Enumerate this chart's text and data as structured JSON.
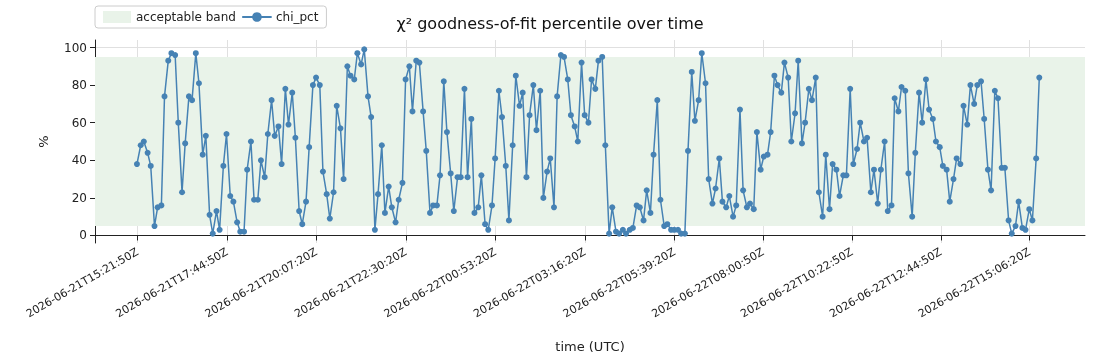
{
  "chart_data": {
    "type": "line",
    "title": "χ² goodness-of-fit percentile over time",
    "xlabel": "time (UTC)",
    "ylabel": "%",
    "x": [
      "2026-06-21T15:21",
      "2026-06-21T15:27",
      "2026-06-21T15:32",
      "2026-06-21T15:38",
      "2026-06-21T15:43",
      "2026-06-21T15:49",
      "2026-06-21T15:54",
      "2026-06-21T16:00",
      "2026-06-21T16:05",
      "2026-06-21T16:11",
      "2026-06-21T16:16",
      "2026-06-21T16:22",
      "2026-06-21T16:27",
      "2026-06-21T16:33",
      "2026-06-21T16:38",
      "2026-06-21T16:44",
      "2026-06-21T16:49",
      "2026-06-21T16:55",
      "2026-06-21T17:00",
      "2026-06-21T17:06",
      "2026-06-21T17:11",
      "2026-06-21T17:17",
      "2026-06-21T17:22",
      "2026-06-21T17:28",
      "2026-06-21T17:33",
      "2026-06-21T17:39",
      "2026-06-21T17:44",
      "2026-06-21T17:50",
      "2026-06-21T17:55",
      "2026-06-21T18:01",
      "2026-06-21T18:06",
      "2026-06-21T18:12",
      "2026-06-21T18:17",
      "2026-06-21T18:23",
      "2026-06-21T18:28",
      "2026-06-21T18:34",
      "2026-06-21T18:39",
      "2026-06-21T18:45",
      "2026-06-21T18:50",
      "2026-06-21T18:56",
      "2026-06-21T19:01",
      "2026-06-21T19:07",
      "2026-06-21T19:12",
      "2026-06-21T19:18",
      "2026-06-21T19:23",
      "2026-06-21T19:29",
      "2026-06-21T19:34",
      "2026-06-21T19:40",
      "2026-06-21T19:45",
      "2026-06-21T19:51",
      "2026-06-21T19:56",
      "2026-06-21T20:02",
      "2026-06-21T20:07",
      "2026-06-21T20:13",
      "2026-06-21T20:18",
      "2026-06-21T20:24",
      "2026-06-21T20:29",
      "2026-06-21T20:35",
      "2026-06-21T20:40",
      "2026-06-21T20:46",
      "2026-06-21T20:51",
      "2026-06-21T20:57",
      "2026-06-21T21:02",
      "2026-06-21T21:08",
      "2026-06-21T21:13",
      "2026-06-21T21:19",
      "2026-06-21T21:24",
      "2026-06-21T21:30",
      "2026-06-21T21:35",
      "2026-06-21T21:41",
      "2026-06-21T21:46",
      "2026-06-21T21:52",
      "2026-06-21T21:57",
      "2026-06-21T22:03",
      "2026-06-21T22:08",
      "2026-06-21T22:14",
      "2026-06-21T22:19",
      "2026-06-21T22:25",
      "2026-06-21T22:30",
      "2026-06-21T22:36",
      "2026-06-21T22:41",
      "2026-06-21T22:47",
      "2026-06-21T22:52",
      "2026-06-21T22:58",
      "2026-06-21T23:03",
      "2026-06-21T23:09",
      "2026-06-21T23:14",
      "2026-06-21T23:20",
      "2026-06-21T23:25",
      "2026-06-21T23:31",
      "2026-06-21T23:36",
      "2026-06-21T23:42",
      "2026-06-21T23:47",
      "2026-06-21T23:53",
      "2026-06-21T23:58",
      "2026-06-22T00:04",
      "2026-06-22T00:09",
      "2026-06-22T00:15",
      "2026-06-22T00:20",
      "2026-06-22T00:26",
      "2026-06-22T00:31",
      "2026-06-22T00:37",
      "2026-06-22T00:42",
      "2026-06-22T00:48",
      "2026-06-22T00:53",
      "2026-06-22T00:59",
      "2026-06-22T01:04",
      "2026-06-22T01:10",
      "2026-06-22T01:15",
      "2026-06-22T01:21",
      "2026-06-22T01:26",
      "2026-06-22T01:32",
      "2026-06-22T01:37",
      "2026-06-22T01:43",
      "2026-06-22T01:48",
      "2026-06-22T01:54",
      "2026-06-22T01:59",
      "2026-06-22T02:05",
      "2026-06-22T02:10",
      "2026-06-22T02:16",
      "2026-06-22T02:21",
      "2026-06-22T02:27",
      "2026-06-22T02:32",
      "2026-06-22T02:38",
      "2026-06-22T02:43",
      "2026-06-22T02:49",
      "2026-06-22T02:54",
      "2026-06-22T03:00",
      "2026-06-22T03:05",
      "2026-06-22T03:11",
      "2026-06-22T03:16",
      "2026-06-22T03:22",
      "2026-06-22T03:27",
      "2026-06-22T03:33",
      "2026-06-22T03:38",
      "2026-06-22T03:44",
      "2026-06-22T03:49",
      "2026-06-22T03:55",
      "2026-06-22T04:00",
      "2026-06-22T04:06",
      "2026-06-22T04:11",
      "2026-06-22T04:17",
      "2026-06-22T04:22",
      "2026-06-22T04:28",
      "2026-06-22T04:33",
      "2026-06-22T04:39",
      "2026-06-22T04:44",
      "2026-06-22T04:50",
      "2026-06-22T04:55",
      "2026-06-22T05:01",
      "2026-06-22T05:06",
      "2026-06-22T05:12",
      "2026-06-22T05:17",
      "2026-06-22T05:23",
      "2026-06-22T05:28",
      "2026-06-22T05:34",
      "2026-06-22T05:39",
      "2026-06-22T05:45",
      "2026-06-22T05:50",
      "2026-06-22T05:56",
      "2026-06-22T06:01",
      "2026-06-22T06:07",
      "2026-06-22T06:12",
      "2026-06-22T06:18",
      "2026-06-22T06:23",
      "2026-06-22T06:29",
      "2026-06-22T06:34",
      "2026-06-22T06:40",
      "2026-06-22T06:45",
      "2026-06-22T06:51",
      "2026-06-22T06:56",
      "2026-06-22T07:02",
      "2026-06-22T07:07",
      "2026-06-22T07:13",
      "2026-06-22T07:18",
      "2026-06-22T07:24",
      "2026-06-22T07:29",
      "2026-06-22T07:35",
      "2026-06-22T07:40",
      "2026-06-22T07:46",
      "2026-06-22T07:51",
      "2026-06-22T07:57",
      "2026-06-22T08:02",
      "2026-06-22T08:08",
      "2026-06-22T08:13",
      "2026-06-22T08:19",
      "2026-06-22T08:24",
      "2026-06-22T08:30",
      "2026-06-22T08:35",
      "2026-06-22T08:41",
      "2026-06-22T08:46",
      "2026-06-22T08:52",
      "2026-06-22T08:57",
      "2026-06-22T09:03",
      "2026-06-22T09:08",
      "2026-06-22T09:14",
      "2026-06-22T09:19",
      "2026-06-22T09:25",
      "2026-06-22T09:30",
      "2026-06-22T09:36",
      "2026-06-22T09:41",
      "2026-06-22T09:47",
      "2026-06-22T09:52",
      "2026-06-22T09:58",
      "2026-06-22T10:03",
      "2026-06-22T10:09",
      "2026-06-22T10:14",
      "2026-06-22T10:20",
      "2026-06-22T10:25",
      "2026-06-22T10:31",
      "2026-06-22T10:36",
      "2026-06-22T10:42",
      "2026-06-22T10:47",
      "2026-06-22T10:53",
      "2026-06-22T10:58",
      "2026-06-22T11:04",
      "2026-06-22T11:09",
      "2026-06-22T11:15",
      "2026-06-22T11:20",
      "2026-06-22T11:26",
      "2026-06-22T11:31",
      "2026-06-22T11:37",
      "2026-06-22T11:42",
      "2026-06-22T11:48",
      "2026-06-22T11:53",
      "2026-06-22T11:59",
      "2026-06-22T12:04",
      "2026-06-22T12:10",
      "2026-06-22T12:15",
      "2026-06-22T12:21",
      "2026-06-22T12:26",
      "2026-06-22T12:32",
      "2026-06-22T12:37",
      "2026-06-22T12:43",
      "2026-06-22T12:48",
      "2026-06-22T12:54",
      "2026-06-22T12:59",
      "2026-06-22T13:05",
      "2026-06-22T13:10",
      "2026-06-22T13:16",
      "2026-06-22T13:21",
      "2026-06-22T13:27",
      "2026-06-22T13:32",
      "2026-06-22T13:38",
      "2026-06-22T13:43",
      "2026-06-22T13:49",
      "2026-06-22T13:54",
      "2026-06-22T14:00",
      "2026-06-22T14:05",
      "2026-06-22T14:11",
      "2026-06-22T14:16",
      "2026-06-22T14:22",
      "2026-06-22T14:27",
      "2026-06-22T14:33",
      "2026-06-22T14:38",
      "2026-06-22T14:44",
      "2026-06-22T14:49",
      "2026-06-22T14:55",
      "2026-06-22T15:00",
      "2026-06-22T15:06",
      "2026-06-22T15:11",
      "2026-06-22T15:17",
      "2026-06-22T15:22"
    ],
    "series": [
      {
        "name": "chi_pct",
        "color": "#4682b4",
        "values": [
          38,
          48,
          50,
          44,
          37,
          5,
          15,
          16,
          74,
          93,
          97,
          96,
          60,
          23,
          49,
          74,
          72,
          97,
          81,
          43,
          53,
          11,
          1,
          13,
          3,
          37,
          54,
          21,
          18,
          7,
          2,
          2,
          35,
          50,
          19,
          19,
          40,
          31,
          54,
          72,
          53,
          58,
          38,
          78,
          59,
          76,
          52,
          13,
          6,
          18,
          47,
          80,
          84,
          80,
          34,
          22,
          9,
          23,
          69,
          57,
          30,
          90,
          85,
          83,
          97,
          91,
          99,
          74,
          63,
          3,
          22,
          48,
          12,
          26,
          15,
          7,
          19,
          28,
          83,
          90,
          66,
          93,
          92,
          66,
          45,
          12,
          16,
          16,
          32,
          82,
          55,
          33,
          13,
          31,
          31,
          78,
          31,
          62,
          12,
          15,
          32,
          6,
          3,
          16,
          41,
          77,
          63,
          37,
          8,
          48,
          85,
          69,
          76,
          31,
          64,
          80,
          56,
          77,
          20,
          34,
          41,
          15,
          74,
          96,
          95,
          83,
          64,
          58,
          50,
          92,
          64,
          60,
          83,
          78,
          93,
          95,
          48,
          1,
          15,
          2,
          1,
          3,
          1,
          3,
          4,
          16,
          15,
          8,
          24,
          12,
          43,
          72,
          19,
          5,
          6,
          3,
          3,
          3,
          1,
          1,
          45,
          87,
          61,
          72,
          97,
          81,
          30,
          17,
          25,
          41,
          18,
          15,
          21,
          10,
          16,
          67,
          24,
          15,
          17,
          14,
          55,
          35,
          42,
          43,
          55,
          85,
          80,
          76,
          92,
          84,
          50,
          65,
          93,
          49,
          60,
          78,
          72,
          84,
          23,
          10,
          43,
          14,
          38,
          35,
          21,
          32,
          32,
          78,
          38,
          46,
          60,
          50,
          52,
          23,
          35,
          17,
          35,
          50,
          13,
          16,
          73,
          66,
          79,
          77,
          33,
          10,
          44,
          76,
          60,
          83,
          67,
          62,
          50,
          47,
          37,
          35,
          18,
          30,
          41,
          38,
          69,
          59,
          80,
          70,
          80,
          82,
          62,
          35,
          24,
          77,
          73,
          36,
          36,
          8,
          1,
          5,
          18,
          4,
          3,
          14,
          8,
          41,
          84
        ]
      }
    ],
    "bands": [
      {
        "axis": "y",
        "from": 5,
        "to": 95,
        "label": "acceptable band",
        "color": "#e9f3e9"
      }
    ],
    "xlim": [
      "2026-06-21T14:14",
      "2026-06-22T16:35"
    ],
    "xticks": [
      {
        "value": "2026-06-21T15:21:50",
        "label": "2026-06-21T15:21:50Z"
      },
      {
        "value": "2026-06-21T17:44:50",
        "label": "2026-06-21T17:44:50Z"
      },
      {
        "value": "2026-06-21T20:07:20",
        "label": "2026-06-21T20:07:20Z"
      },
      {
        "value": "2026-06-21T22:30:20",
        "label": "2026-06-21T22:30:20Z"
      },
      {
        "value": "2026-06-22T00:53:20",
        "label": "2026-06-22T00:53:20Z"
      },
      {
        "value": "2026-06-22T03:16:20",
        "label": "2026-06-22T03:16:20Z"
      },
      {
        "value": "2026-06-22T05:39:20",
        "label": "2026-06-22T05:39:20Z"
      },
      {
        "value": "2026-06-22T08:00:50",
        "label": "2026-06-22T08:00:50Z"
      },
      {
        "value": "2026-06-22T10:22:50",
        "label": "2026-06-22T10:22:50Z"
      },
      {
        "value": "2026-06-22T12:44:50",
        "label": "2026-06-22T12:44:50Z"
      },
      {
        "value": "2026-06-22T15:06:20",
        "label": "2026-06-22T15:06:20Z"
      }
    ],
    "ylim": [
      -4,
      104
    ],
    "yticks": [
      0,
      20,
      40,
      60,
      80,
      100
    ],
    "grid": true,
    "legend": "top left",
    "marker": "circle",
    "line_style": "solid"
  }
}
